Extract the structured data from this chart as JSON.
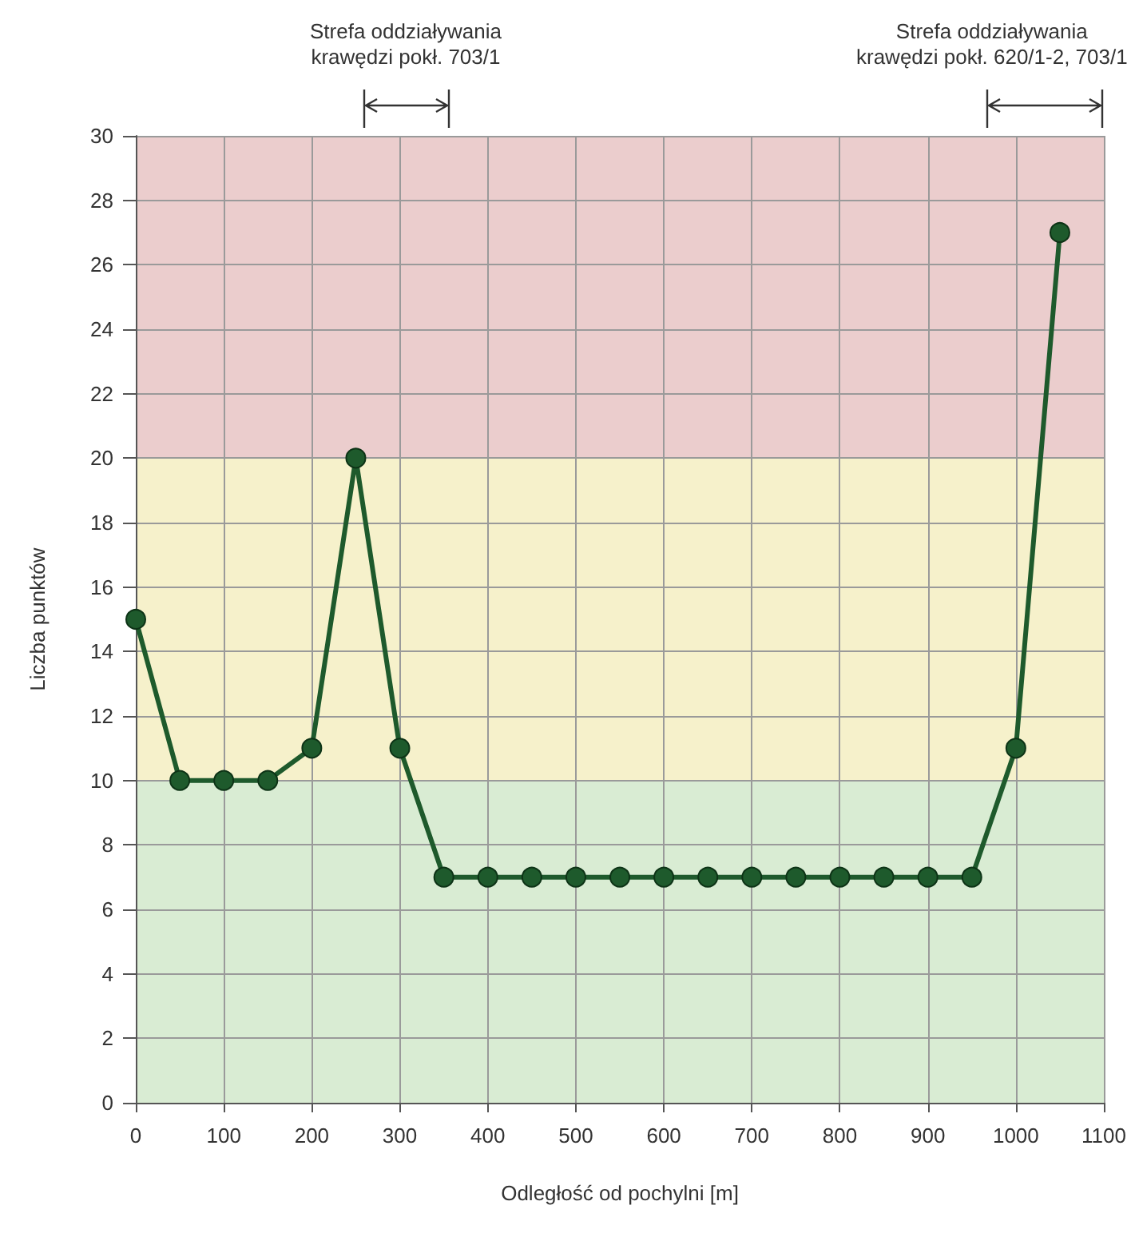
{
  "chart_data": {
    "type": "line",
    "xlabel": "Odległość od pochylni [m]",
    "ylabel": "Liczba punktów",
    "x": [
      0,
      50,
      100,
      150,
      200,
      250,
      300,
      350,
      400,
      450,
      500,
      550,
      600,
      650,
      700,
      750,
      800,
      850,
      900,
      950,
      1000,
      1050
    ],
    "series": [
      {
        "color": "#1e5a2c",
        "values": [
          15,
          10,
          10,
          10,
          11,
          20,
          11,
          7,
          7,
          7,
          7,
          7,
          7,
          7,
          7,
          7,
          7,
          7,
          7,
          7,
          11,
          27
        ]
      }
    ],
    "xlim": [
      0,
      1100
    ],
    "xticks": [
      0,
      100,
      200,
      300,
      400,
      500,
      600,
      700,
      800,
      900,
      1000,
      1100
    ],
    "ylim": [
      0,
      30
    ],
    "yticks": [
      0,
      2,
      4,
      6,
      8,
      10,
      12,
      14,
      16,
      18,
      20,
      22,
      24,
      26,
      28,
      30
    ],
    "bands": [
      {
        "axis": "y",
        "from": 0,
        "to": 10,
        "color": "#d9ecd3"
      },
      {
        "axis": "y",
        "from": 10,
        "to": 20,
        "color": "#f6f1cb"
      },
      {
        "axis": "y",
        "from": 20,
        "to": 30,
        "color": "#ebcdcd"
      }
    ],
    "annotations": [
      "Strefa oddziaływania\nkrawędzi pokł. 703/1",
      "Strefa oddziaływania\nkrawędzi pokł. 620/1-2, 703/1"
    ],
    "grid": true,
    "marker": "circle",
    "line_style": "solid"
  }
}
